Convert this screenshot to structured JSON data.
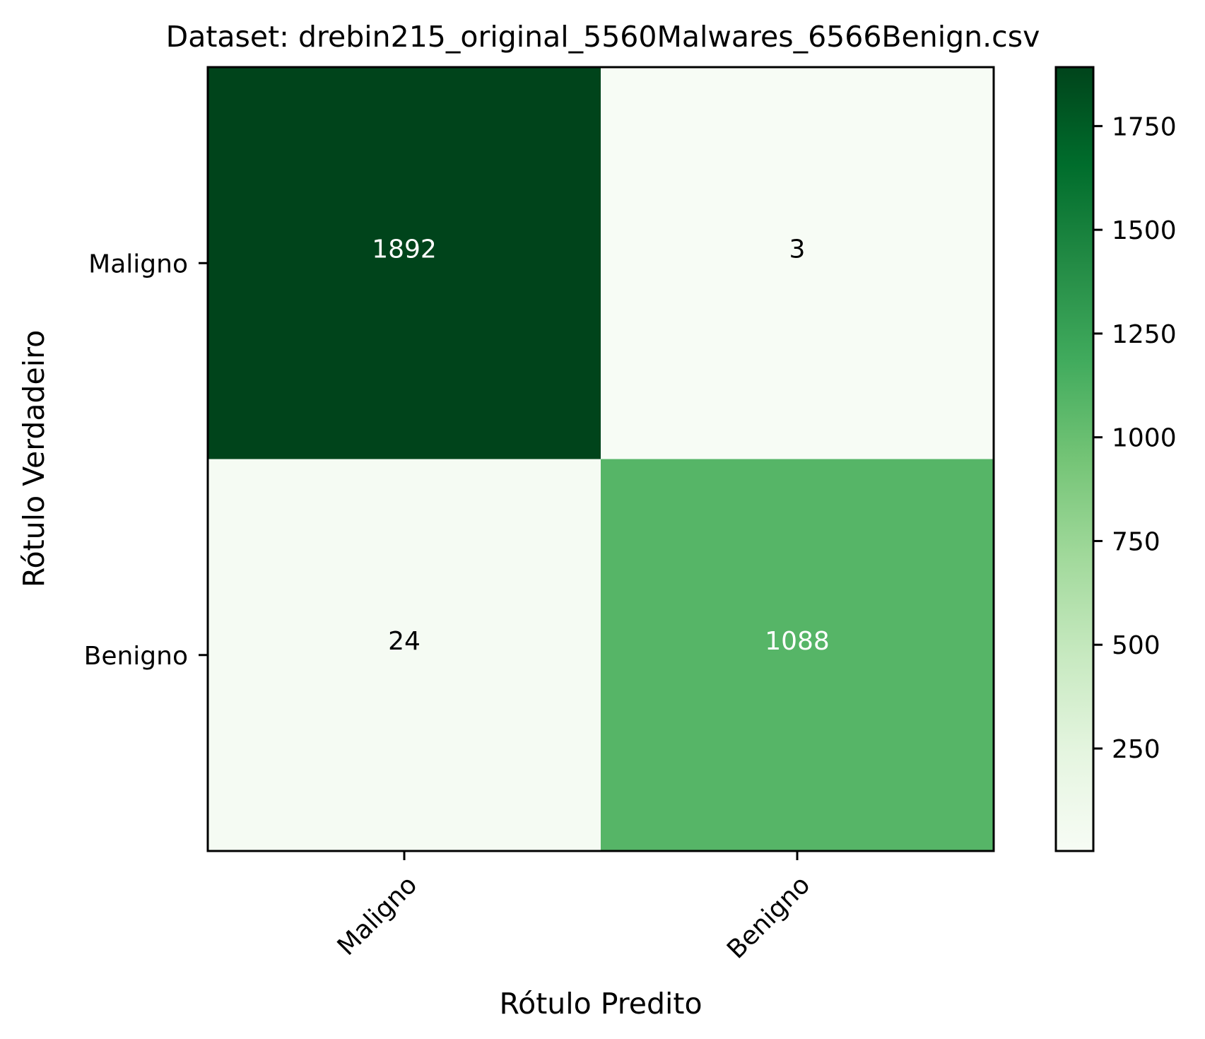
{
  "chart_data": {
    "type": "heatmap",
    "title": "Dataset: drebin215_original_5560Malwares_6566Benign.csv",
    "xlabel": "Rótulo Predito",
    "ylabel": "Rótulo Verdadeiro",
    "x_categories": [
      "Maligno",
      "Benigno"
    ],
    "y_categories": [
      "Maligno",
      "Benigno"
    ],
    "values": [
      [
        1892,
        3
      ],
      [
        24,
        1088
      ]
    ],
    "value_labels": [
      [
        "1892",
        "3"
      ],
      [
        "24",
        "1088"
      ]
    ],
    "colormap": "Greens",
    "color_range": [
      3,
      1892
    ],
    "colorbar_ticks": [
      250,
      500,
      750,
      1000,
      1250,
      1500,
      1750
    ],
    "colorbar_tick_labels": [
      "250",
      "500",
      "750",
      "1000",
      "1250",
      "1500",
      "1750"
    ],
    "text_colors": {
      "dark_cell": "#ffffff",
      "light_cell": "#000000"
    },
    "grid": false
  }
}
